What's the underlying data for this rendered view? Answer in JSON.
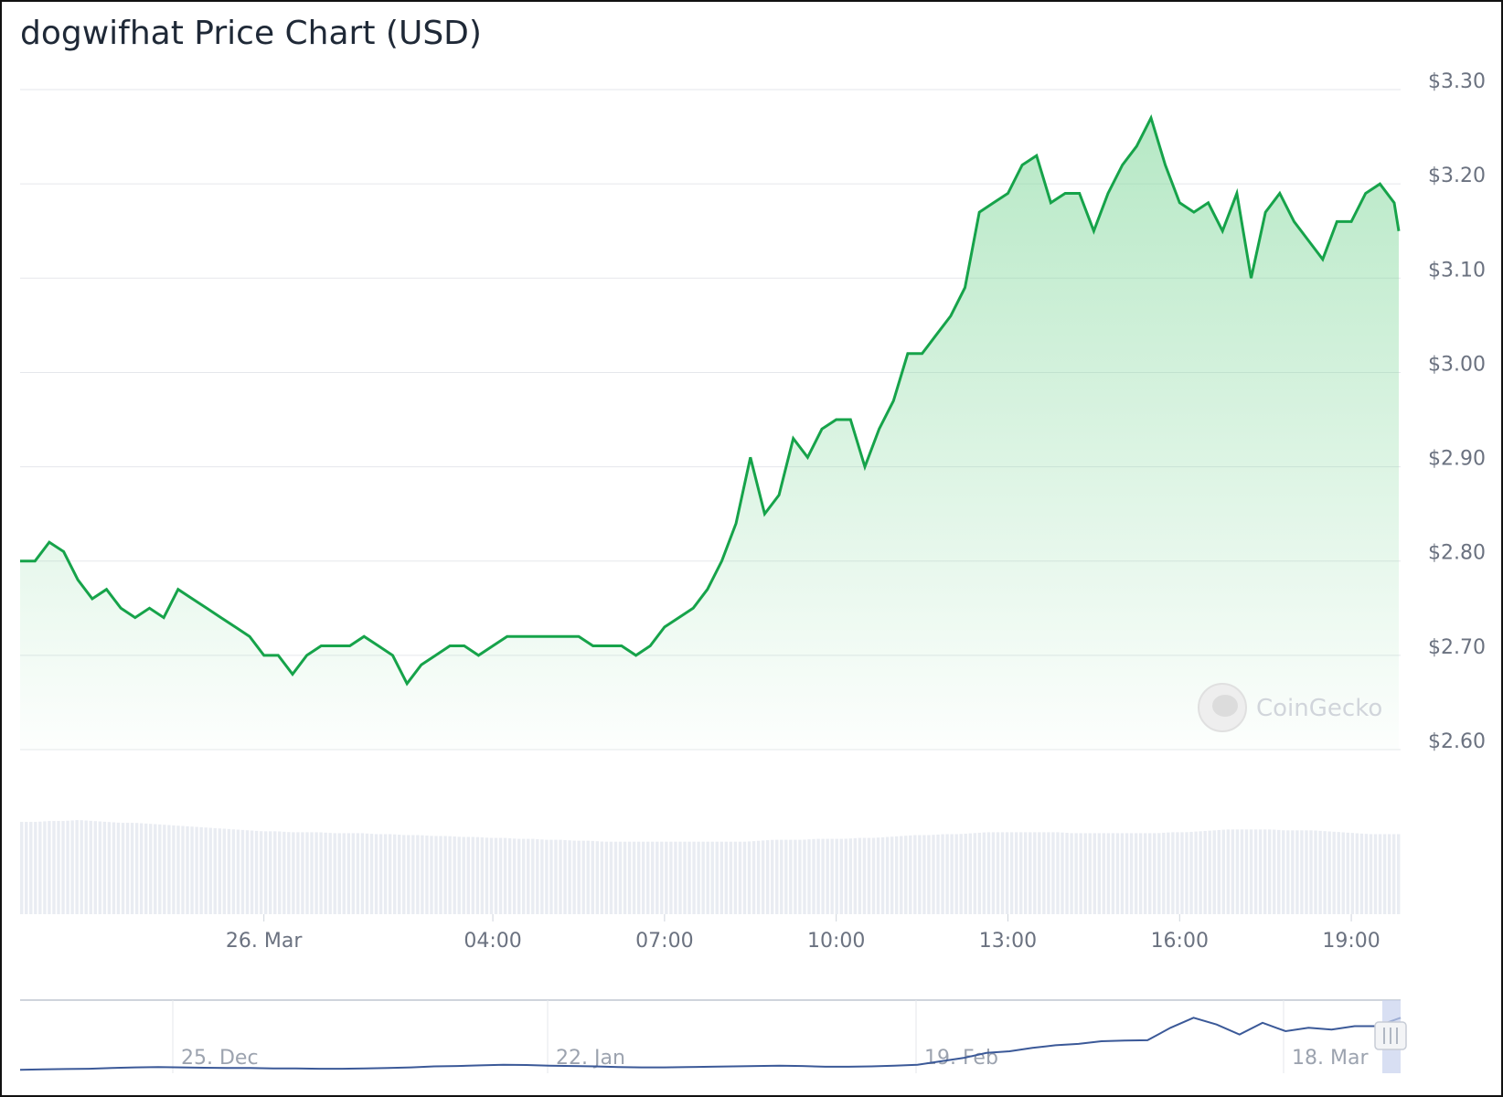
{
  "title": "dogwifhat Price Chart (USD)",
  "watermark": "CoinGecko",
  "colors": {
    "line": "#16a34a",
    "area_top": "#86d99f",
    "grid": "#e5e7eb",
    "volume": "#e9ecf2",
    "navigator_line": "#3b5998",
    "navigator_handle": "#c7d2ee"
  },
  "chart_data": {
    "type": "area",
    "title": "dogwifhat Price Chart (USD)",
    "xlabel": "",
    "ylabel": "",
    "ylim": [
      2.6,
      3.3
    ],
    "y_ticks": [
      "$2.60",
      "$2.70",
      "$2.80",
      "$2.90",
      "$3.00",
      "$3.10",
      "$3.20",
      "$3.30"
    ],
    "y_tick_values": [
      2.6,
      2.7,
      2.8,
      2.9,
      3.0,
      3.1,
      3.2,
      3.3
    ],
    "x_ticks": [
      "26. Mar",
      "04:00",
      "07:00",
      "10:00",
      "13:00",
      "16:00",
      "19:00"
    ],
    "x_tick_hours": [
      0,
      4,
      7,
      10,
      13,
      16,
      19
    ],
    "xlim_hours": [
      -4.26,
      19.83
    ],
    "grid": true,
    "legend": "none",
    "series": [
      {
        "x_hours": [
          -4.26,
          -4.0,
          -3.75,
          -3.5,
          -3.25,
          -3.0,
          -2.75,
          -2.5,
          -2.25,
          -2.0,
          -1.75,
          -1.5,
          -1.25,
          -1.0,
          -0.75,
          -0.5,
          -0.25,
          0.0,
          0.25,
          0.5,
          0.75,
          1.0,
          1.25,
          1.5,
          1.75,
          2.0,
          2.25,
          2.5,
          2.75,
          3.0,
          3.25,
          3.5,
          3.75,
          4.0,
          4.25,
          4.5,
          4.75,
          5.0,
          5.25,
          5.5,
          5.75,
          6.0,
          6.25,
          6.5,
          6.75,
          7.0,
          7.25,
          7.5,
          7.75,
          8.0,
          8.25,
          8.5,
          8.75,
          9.0,
          9.25,
          9.5,
          9.75,
          10.0,
          10.25,
          10.5,
          10.75,
          11.0,
          11.25,
          11.5,
          11.75,
          12.0,
          12.25,
          12.5,
          12.75,
          13.0,
          13.25,
          13.5,
          13.75,
          14.0,
          14.25,
          14.5,
          14.75,
          15.0,
          15.25,
          15.5,
          15.75,
          16.0,
          16.25,
          16.5,
          16.75,
          17.0,
          17.25,
          17.5,
          17.75,
          18.0,
          18.25,
          18.5,
          18.75,
          19.0,
          19.25,
          19.5,
          19.75,
          19.83
        ],
        "values": [
          2.8,
          2.8,
          2.82,
          2.81,
          2.78,
          2.76,
          2.77,
          2.75,
          2.74,
          2.75,
          2.74,
          2.77,
          2.76,
          2.75,
          2.74,
          2.73,
          2.72,
          2.7,
          2.7,
          2.68,
          2.7,
          2.71,
          2.71,
          2.71,
          2.72,
          2.71,
          2.7,
          2.67,
          2.69,
          2.7,
          2.71,
          2.71,
          2.7,
          2.71,
          2.72,
          2.72,
          2.72,
          2.72,
          2.72,
          2.72,
          2.71,
          2.71,
          2.71,
          2.7,
          2.71,
          2.73,
          2.74,
          2.75,
          2.77,
          2.8,
          2.84,
          2.91,
          2.85,
          2.87,
          2.93,
          2.91,
          2.94,
          2.95,
          2.95,
          2.9,
          2.94,
          2.97,
          3.02,
          3.02,
          3.04,
          3.06,
          3.09,
          3.17,
          3.18,
          3.19,
          3.22,
          3.23,
          3.18,
          3.19,
          3.19,
          3.15,
          3.19,
          3.22,
          3.24,
          3.27,
          3.22,
          3.18,
          3.17,
          3.18,
          3.15,
          3.19,
          3.1,
          3.17,
          3.19,
          3.16,
          3.14,
          3.12,
          3.16,
          3.16,
          3.19,
          3.2,
          3.18,
          3.15
        ],
        "volume_rel": [
          0.98,
          0.98,
          0.99,
          0.99,
          1.0,
          0.99,
          0.98,
          0.97,
          0.97,
          0.96,
          0.95,
          0.94,
          0.93,
          0.92,
          0.91,
          0.9,
          0.89,
          0.88,
          0.88,
          0.87,
          0.87,
          0.87,
          0.86,
          0.86,
          0.86,
          0.85,
          0.85,
          0.84,
          0.84,
          0.83,
          0.83,
          0.82,
          0.82,
          0.81,
          0.81,
          0.8,
          0.8,
          0.79,
          0.79,
          0.78,
          0.78,
          0.77,
          0.77,
          0.77,
          0.77,
          0.77,
          0.77,
          0.77,
          0.77,
          0.77,
          0.77,
          0.77,
          0.78,
          0.79,
          0.79,
          0.79,
          0.8,
          0.8,
          0.8,
          0.81,
          0.81,
          0.82,
          0.83,
          0.84,
          0.84,
          0.85,
          0.85,
          0.86,
          0.87,
          0.87,
          0.87,
          0.87,
          0.87,
          0.87,
          0.86,
          0.86,
          0.86,
          0.86,
          0.86,
          0.86,
          0.86,
          0.87,
          0.87,
          0.88,
          0.89,
          0.9,
          0.9,
          0.9,
          0.9,
          0.89,
          0.89,
          0.89,
          0.88,
          0.87,
          0.86,
          0.85,
          0.85,
          0.85
        ]
      }
    ],
    "navigator": {
      "labels": [
        "25. Dec",
        "22. Jan",
        "19. Feb",
        "18. Mar"
      ],
      "values": [
        0.05,
        0.06,
        0.07,
        0.08,
        0.1,
        0.12,
        0.13,
        0.12,
        0.11,
        0.1,
        0.1,
        0.09,
        0.09,
        0.08,
        0.08,
        0.09,
        0.1,
        0.12,
        0.15,
        0.16,
        0.18,
        0.2,
        0.19,
        0.17,
        0.16,
        0.15,
        0.13,
        0.12,
        0.12,
        0.13,
        0.14,
        0.15,
        0.16,
        0.17,
        0.16,
        0.14,
        0.14,
        0.15,
        0.17,
        0.2,
        0.3,
        0.4,
        0.55,
        0.6,
        0.7,
        0.78,
        0.82,
        0.9,
        0.92,
        0.93,
        1.3,
        1.6,
        1.4,
        1.1,
        1.45,
        1.2,
        1.3,
        1.25,
        1.35,
        1.35,
        1.6
      ],
      "ylim": [
        0,
        1.8
      ]
    }
  }
}
